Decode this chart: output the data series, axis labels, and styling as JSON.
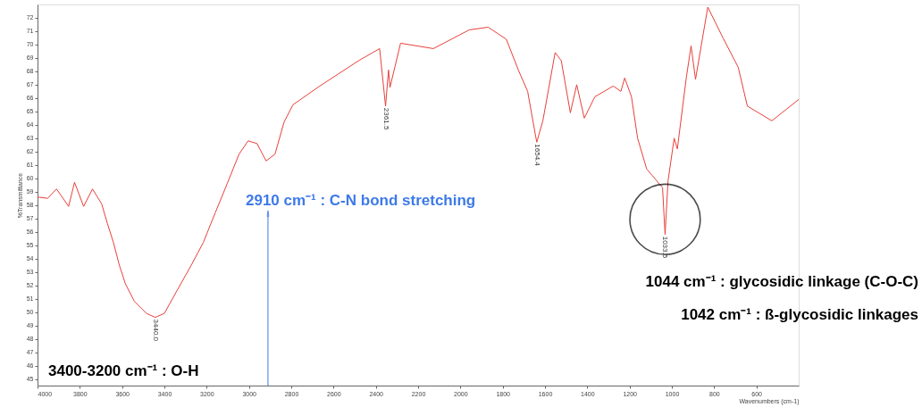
{
  "chart_data": {
    "type": "line",
    "xlabel": "Wavenumbers (cm-1)",
    "ylabel": "%Transmittance",
    "xlim": [
      4000,
      400
    ],
    "ylim": [
      44.5,
      73
    ],
    "xticks": [
      4000,
      3800,
      3600,
      3400,
      3200,
      3000,
      2800,
      2600,
      2400,
      2200,
      2000,
      1800,
      1600,
      1400,
      1200,
      1000,
      800,
      600
    ],
    "yticks": [
      45,
      46,
      47,
      48,
      49,
      50,
      51,
      52,
      53,
      54,
      55,
      56,
      57,
      58,
      59,
      60,
      61,
      62,
      63,
      64,
      65,
      66,
      67,
      68,
      69,
      70,
      71,
      72
    ],
    "grid": false,
    "marker": "none",
    "line_style": "solid",
    "series": [
      {
        "color": "#e8403a",
        "x": [
          4000,
          3952,
          3910,
          3853,
          3825,
          3782,
          3740,
          3697,
          3669,
          3641,
          3613,
          3584,
          3542,
          3485,
          3443,
          3400,
          3344,
          3273,
          3216,
          3160,
          3103,
          3047,
          3004,
          2962,
          2919,
          2877,
          2834,
          2792,
          2665,
          2481,
          2382,
          2354,
          2340,
          2333,
          2283,
          2128,
          1958,
          1869,
          1783,
          1726,
          1682,
          1639,
          1610,
          1552,
          1523,
          1480,
          1450,
          1414,
          1364,
          1277,
          1241,
          1223,
          1191,
          1162,
          1119,
          1044,
          1032,
          1018,
          989,
          974,
          931,
          909,
          888,
          830,
          758,
          686,
          643,
          527,
          400
        ],
        "values": [
          58.6,
          58.5,
          59.2,
          57.9,
          59.7,
          57.9,
          59.2,
          58.1,
          56.6,
          55.2,
          53.5,
          52.1,
          50.8,
          49.9,
          49.6,
          49.9,
          51.5,
          53.5,
          55.2,
          57.4,
          59.6,
          61.8,
          62.8,
          62.6,
          61.3,
          61.8,
          64.2,
          65.5,
          66.9,
          68.8,
          69.7,
          65.4,
          68.1,
          66.8,
          70.1,
          69.7,
          71.1,
          71.3,
          70.4,
          68.1,
          66.5,
          62.7,
          64.3,
          69.4,
          68.8,
          64.9,
          67.0,
          64.5,
          66.1,
          66.9,
          66.5,
          67.5,
          66.1,
          63.0,
          60.7,
          59.3,
          55.8,
          59.8,
          63.0,
          62.2,
          67.6,
          69.9,
          67.4,
          72.8,
          70.5,
          68.3,
          65.4,
          64.3,
          65.9
        ]
      }
    ],
    "annotations": [
      {
        "text": "2910 cm⁻¹ : C-N bond stretching",
        "x": 2910,
        "y": 61.3
      },
      "3400-3200 cm⁻¹ : O-H",
      "1044 cm⁻¹ : glycosidic linkage (C-O-C)",
      "1042 cm⁻¹ : ß-glycosidic linkages",
      {
        "text": "3440.0",
        "x": 3443,
        "y": 49.6
      },
      {
        "text": "2361.5",
        "x": 2354,
        "y": 65.4
      },
      {
        "text": "1654.4",
        "x": 1639,
        "y": 62.7
      },
      {
        "text": "1033.5",
        "x": 1032,
        "y": 55.8
      }
    ]
  }
}
